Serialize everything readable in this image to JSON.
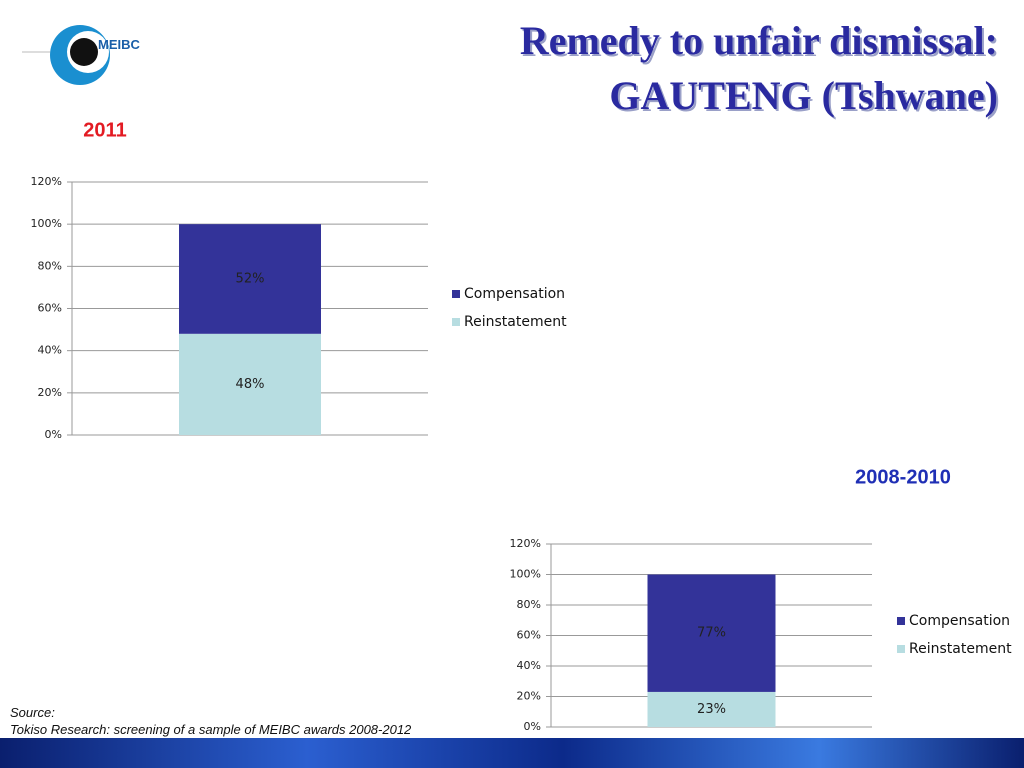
{
  "title_lines": [
    "Remedy to unfair dismissal:",
    "GAUTENG (Tshwane)"
  ],
  "logo_text": "MEIBC",
  "source": {
    "label": "Source:",
    "text": "Tokiso Research: screening of a sample of MEIBC awards 2008-2012"
  },
  "chart_data": [
    {
      "type": "stacked_bar",
      "title": "2011",
      "title_color": "#e31b23",
      "categories": [
        null
      ],
      "series": [
        {
          "name": "Reinstatement",
          "color": "#b7dde1",
          "values": [
            48
          ],
          "value_labels": [
            "48%"
          ]
        },
        {
          "name": "Compensation",
          "color": "#333399",
          "values": [
            52
          ],
          "value_labels": [
            "52%"
          ]
        }
      ],
      "ylim": [
        0,
        120
      ],
      "yticks": [
        {
          "value": 0,
          "label": "0%"
        },
        {
          "value": 20,
          "label": "20%"
        },
        {
          "value": 40,
          "label": "40%"
        },
        {
          "value": 60,
          "label": "60%"
        },
        {
          "value": 80,
          "label": "80%"
        },
        {
          "value": 100,
          "label": "100%"
        },
        {
          "value": 120,
          "label": "120%"
        }
      ],
      "grid": true,
      "legend": "right"
    },
    {
      "type": "stacked_bar",
      "title": "2008-2010",
      "title_color": "#1f2fb5",
      "categories": [
        null
      ],
      "series": [
        {
          "name": "Reinstatement",
          "color": "#b7dde1",
          "values": [
            23
          ],
          "value_labels": [
            "23%"
          ]
        },
        {
          "name": "Compensation",
          "color": "#333399",
          "values": [
            77
          ],
          "value_labels": [
            "77%"
          ]
        }
      ],
      "ylim": [
        0,
        120
      ],
      "yticks": [
        {
          "value": 0,
          "label": "0%"
        },
        {
          "value": 20,
          "label": "20%"
        },
        {
          "value": 40,
          "label": "40%"
        },
        {
          "value": 60,
          "label": "60%"
        },
        {
          "value": 80,
          "label": "80%"
        },
        {
          "value": 100,
          "label": "100%"
        },
        {
          "value": 120,
          "label": "120%"
        }
      ],
      "grid": true,
      "legend": "right"
    }
  ]
}
